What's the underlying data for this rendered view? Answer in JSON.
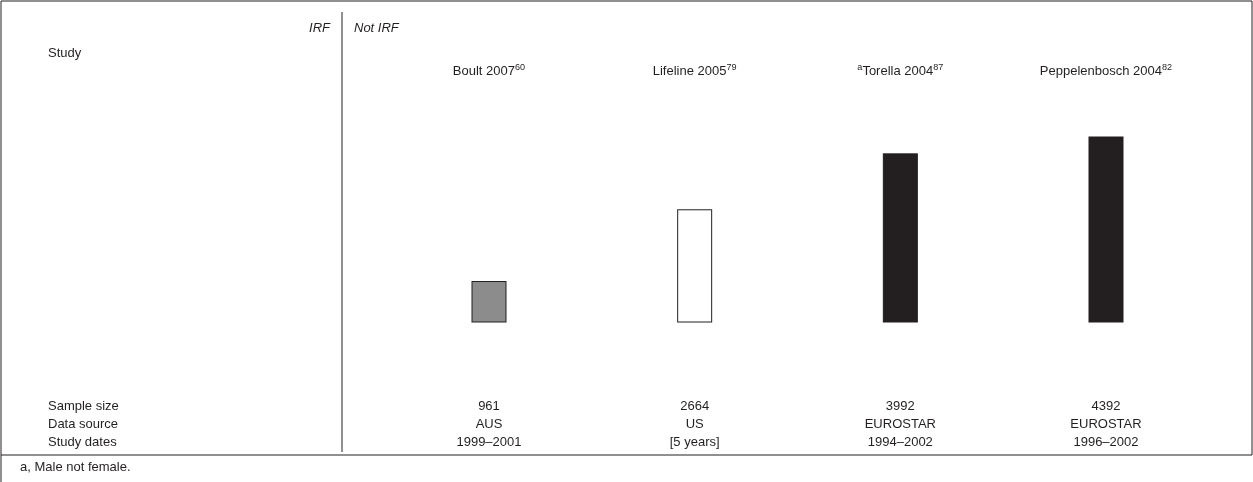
{
  "chart_data": {
    "type": "bar",
    "categories": [
      "Boult 2007$^{60}$",
      "Lifeline 2005$^{79}$",
      "$^{a}$Torella 2004$^{87}$",
      "Peppelenbosch 2004$^{82}$"
    ],
    "values": [
      961,
      2664,
      3992,
      4392
    ],
    "colors": [
      "#8c8c8c",
      "#ffffff",
      "#231f20",
      "#231f20"
    ],
    "data_labels": true,
    "annotations": [
      "IRF",
      "Not IRF",
      "Study",
      "Sample size",
      "Data source",
      "Study dates",
      "AUS",
      "US",
      "EUROSTAR",
      "EUROSTAR",
      "1999–2001",
      "[5 years]",
      "1994–2002",
      "1996–2002",
      "a, Male not female."
    ]
  }
}
